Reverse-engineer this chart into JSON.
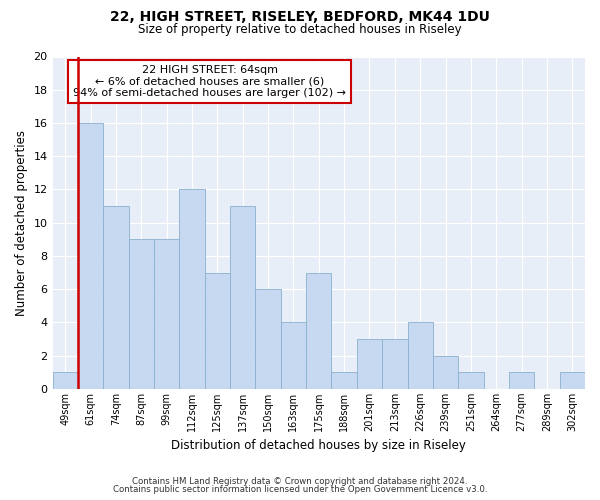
{
  "title": "22, HIGH STREET, RISELEY, BEDFORD, MK44 1DU",
  "subtitle": "Size of property relative to detached houses in Riseley",
  "xlabel": "Distribution of detached houses by size in Riseley",
  "ylabel": "Number of detached properties",
  "footnote1": "Contains HM Land Registry data © Crown copyright and database right 2024.",
  "footnote2": "Contains public sector information licensed under the Open Government Licence v3.0.",
  "bar_labels": [
    "49sqm",
    "61sqm",
    "74sqm",
    "87sqm",
    "99sqm",
    "112sqm",
    "125sqm",
    "137sqm",
    "150sqm",
    "163sqm",
    "175sqm",
    "188sqm",
    "201sqm",
    "213sqm",
    "226sqm",
    "239sqm",
    "251sqm",
    "264sqm",
    "277sqm",
    "289sqm",
    "302sqm"
  ],
  "bar_values": [
    1,
    16,
    11,
    9,
    9,
    12,
    7,
    11,
    6,
    4,
    7,
    1,
    3,
    3,
    4,
    2,
    1,
    0,
    1,
    0,
    1
  ],
  "bar_color": "#c6d9f0",
  "bar_edge_color": "#8ab0d0",
  "highlight_color": "#cc0000",
  "highlight_index": 1,
  "ylim": [
    0,
    20
  ],
  "yticks": [
    0,
    2,
    4,
    6,
    8,
    10,
    12,
    14,
    16,
    18,
    20
  ],
  "annotation_title": "22 HIGH STREET: 64sqm",
  "annotation_line1": "← 6% of detached houses are smaller (6)",
  "annotation_line2": "94% of semi-detached houses are larger (102) →",
  "background_color": "#ffffff",
  "plot_bg_color": "#e8eef7",
  "grid_color": "#ffffff"
}
